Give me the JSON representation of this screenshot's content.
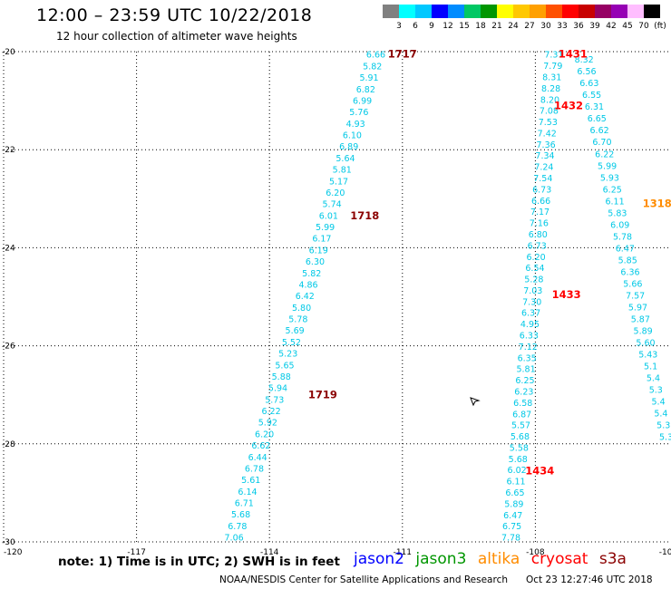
{
  "header": {
    "title": "12:00 – 23:59 UTC 10/22/2018",
    "subtitle": "12 hour collection of altimeter wave heights"
  },
  "colorbar": {
    "swatches": [
      "#808080",
      "#00ffff",
      "#00c8ff",
      "#0000ff",
      "#008cff",
      "#00c864",
      "#009600",
      "#ffff00",
      "#ffc800",
      "#ffa000",
      "#ff5000",
      "#ff0000",
      "#c80000",
      "#960064",
      "#9600b4",
      "#ffbeff",
      "#000000"
    ],
    "labels": [
      "3",
      "6",
      "9",
      "12",
      "15",
      "18",
      "21",
      "24",
      "27",
      "30",
      "33",
      "36",
      "39",
      "42",
      "45",
      "70",
      "(ft)"
    ]
  },
  "map": {
    "lon_range": [
      -120,
      -105
    ],
    "lat_range": [
      -30,
      -20
    ],
    "x_ticks": [
      {
        "value": -120,
        "label": "-120"
      },
      {
        "value": -117,
        "label": "-117"
      },
      {
        "value": -114,
        "label": "-114"
      },
      {
        "value": -111,
        "label": "-111"
      },
      {
        "value": -108,
        "label": "-108"
      },
      {
        "value": -105,
        "label": "-105"
      }
    ],
    "y_ticks": [
      {
        "value": -20,
        "label": "-20"
      },
      {
        "value": -22,
        "label": "-22"
      },
      {
        "value": -24,
        "label": "-24"
      },
      {
        "value": -26,
        "label": "-26"
      },
      {
        "value": -28,
        "label": "-28"
      },
      {
        "value": -30,
        "label": "-30"
      }
    ]
  },
  "tracks": {
    "text_color": "#00c8e6",
    "track1": {
      "values": [
        "6.66",
        "5.82",
        "5.91",
        "6.82",
        "6.99",
        "5.76",
        "4.93",
        "6.10",
        "6.89",
        "5.64",
        "5.81",
        "5.17",
        "6.20",
        "5.74",
        "6.01",
        "5.99",
        "6.17",
        "6.19",
        "6.30",
        "5.82",
        "4.86",
        "6.42",
        "5.80",
        "5.78",
        "5.69",
        "5.52",
        "5.23",
        "5.65",
        "5.88",
        "5.94",
        "5.73",
        "6.22",
        "5.92",
        "6.20",
        "6.62",
        "6.44",
        "6.78",
        "5.61",
        "6.14",
        "6.71",
        "5.68",
        "6.78",
        "7.06"
      ],
      "labels": [
        {
          "text": "1717",
          "lon": -111.0,
          "lat": -20.05
        },
        {
          "text": "1718",
          "lon": -111.85,
          "lat": -23.35
        },
        {
          "text": "1719",
          "lon": -112.8,
          "lat": -27.0
        }
      ],
      "label_color": "#8b0000"
    },
    "track2": {
      "values": [
        "7.31",
        "7.79",
        "8.31",
        "8.28",
        "8.20",
        "7.08",
        "7.53",
        "7.42",
        "7.36",
        "7.34",
        "7.24",
        "7.54",
        "6.73",
        "6.66",
        "7.17",
        "7.16",
        "6.80",
        "6.73",
        "6.20",
        "6.54",
        "5.28",
        "7.03",
        "7.30",
        "6.37",
        "4.95",
        "6.33",
        "7.12",
        "6.35",
        "5.81",
        "6.25",
        "6.23",
        "6.58",
        "6.87",
        "5.57",
        "5.68",
        "5.58",
        "5.68",
        "6.02",
        "6.11",
        "6.65",
        "5.89",
        "6.47",
        "6.75",
        "7.78"
      ],
      "labels": [
        {
          "text": "1433",
          "lon": -107.3,
          "lat": -24.95
        },
        {
          "text": "1434",
          "lon": -107.9,
          "lat": -28.55
        }
      ],
      "label_color": "#ff0000"
    },
    "track3": {
      "values": [
        "8.32",
        "6.56",
        "6.63",
        "6.55",
        "6.31",
        "6.65",
        "6.62",
        "6.70",
        "6.22",
        "5.99",
        "5.93",
        "6.25",
        "6.11",
        "5.83",
        "6.09",
        "5.78",
        "6.47",
        "5.85",
        "6.36",
        "5.66",
        "7.57",
        "5.97",
        "5.87",
        "5.89",
        "5.60",
        "5.43",
        "5.1",
        "5.4",
        "5.3",
        "5.4",
        "5.4",
        "5.3",
        "5.3"
      ],
      "labels": [
        {
          "text": "1431",
          "lon": -107.15,
          "lat": -20.05
        },
        {
          "text": "1432",
          "lon": -107.25,
          "lat": -21.1
        }
      ],
      "label_color": "#ff0000"
    },
    "extra_label": {
      "text": "1318",
      "lon": -105.25,
      "lat": -23.1,
      "color": "#ff8c00"
    }
  },
  "note": "note:  1) Time is in UTC;  2) SWH is in feet",
  "legend": [
    {
      "name": "jason2",
      "color": "#0000ff"
    },
    {
      "name": "jason3",
      "color": "#009600"
    },
    {
      "name": "altika",
      "color": "#ff8c00"
    },
    {
      "name": "cryosat",
      "color": "#ff0000"
    },
    {
      "name": "s3a",
      "color": "#8b0000"
    }
  ],
  "footer": {
    "credit": "NOAA/NESDIS Center for Satellite Applications and Research",
    "timestamp": "Oct 23 12:27:46 UTC 2018"
  }
}
